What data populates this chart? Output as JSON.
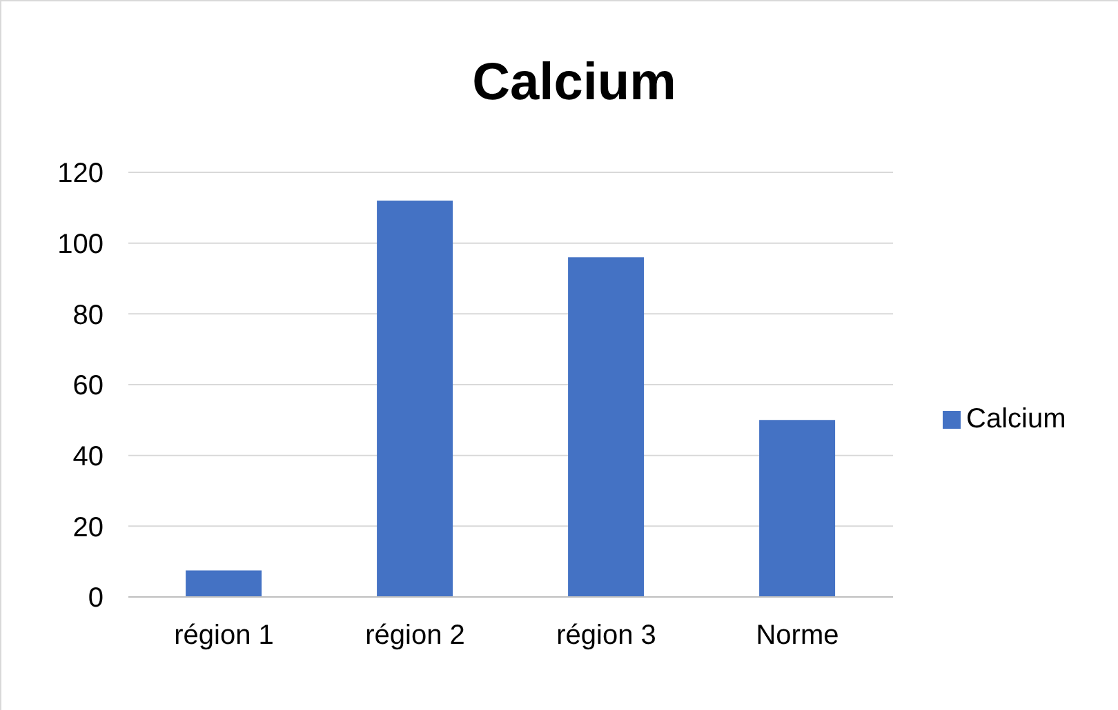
{
  "chart_data": {
    "type": "bar",
    "title": "Calcium",
    "categories": [
      "région 1",
      "région 2",
      "région 3",
      "Norme"
    ],
    "series": [
      {
        "name": "Calcium",
        "color": "#4472c4",
        "values": [
          7.5,
          112,
          96,
          50
        ]
      }
    ],
    "ylim": [
      0,
      120
    ],
    "yticks": [
      0,
      20,
      40,
      60,
      80,
      100,
      120
    ],
    "grid": "y",
    "legend": "right"
  }
}
